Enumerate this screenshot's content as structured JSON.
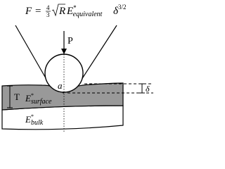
{
  "formula": {
    "lhs": "F",
    "eq": "=",
    "num": "4",
    "den": "3",
    "sqrt": "R",
    "symbol": "E",
    "sup": "*",
    "sub": "equivalent",
    "delta": "δ",
    "exp": "3/2"
  },
  "labels": {
    "load": "P",
    "contact_radius": "a",
    "thickness": "T",
    "indentation": "δ",
    "surface": {
      "symbol": "E",
      "sup": "*",
      "sub": "surface"
    },
    "bulk": {
      "symbol": "E",
      "sup": "*",
      "sub": "bulk"
    }
  }
}
